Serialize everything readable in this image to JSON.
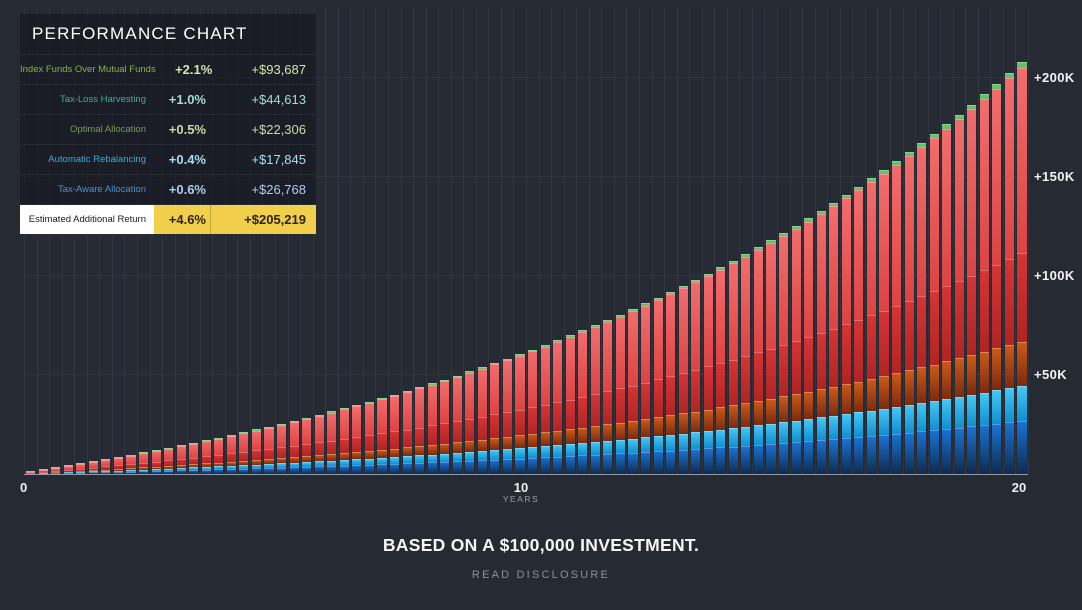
{
  "page": {
    "background": "#262a33",
    "caption": "BASED ON A $100,000 INVESTMENT.",
    "disclosure_link": "READ DISCLOSURE"
  },
  "legend": {
    "title": "PERFORMANCE CHART",
    "rows": [
      {
        "label": "Index Funds Over Mutual Funds",
        "pct": "+2.1%",
        "usd": "+$93,687",
        "label_color": "#86b345",
        "value_color": "#d2e6ab",
        "highlight": false
      },
      {
        "label": "Tax-Loss Harvesting",
        "pct": "+1.0%",
        "usd": "+$44,613",
        "label_color": "#3fae9e",
        "value_color": "#a5dcd2",
        "highlight": false
      },
      {
        "label": "Optimal Allocation",
        "pct": "+0.5%",
        "usd": "+$22,306",
        "label_color": "#7d9a4e",
        "value_color": "#c9dba4",
        "highlight": false
      },
      {
        "label": "Automatic Rebalancing",
        "pct": "+0.4%",
        "usd": "+$17,845",
        "label_color": "#3fa9d8",
        "value_color": "#aadcf2",
        "highlight": false
      },
      {
        "label": "Tax-Aware Allocation",
        "pct": "+0.6%",
        "usd": "+$26,768",
        "label_color": "#4a90d9",
        "value_color": "#aecdee",
        "highlight": false
      },
      {
        "label": "Estimated Additional Return",
        "pct": "+4.6%",
        "usd": "+$205,219",
        "label_color": "#16191f",
        "value_color": "#2a2410",
        "highlight": true,
        "label_bg": "#ffffff",
        "value_bg": "#f2cf4b"
      }
    ]
  },
  "chart_data": {
    "type": "bar",
    "stacked": true,
    "title": "PERFORMANCE CHART",
    "x_axis": {
      "label": "YEARS",
      "min": 0,
      "max": 20,
      "ticks": [
        "0",
        "10",
        "20"
      ],
      "bars": 80
    },
    "y_axis": {
      "ticks": [
        {
          "label": "+50K",
          "value": 50000
        },
        {
          "label": "+100K",
          "value": 100000
        },
        {
          "label": "+150K",
          "value": 150000
        },
        {
          "label": "+200K",
          "value": 200000
        }
      ],
      "max": 232000
    },
    "growth": {
      "annual_rate": 0.093,
      "total_at_20_years": 205219,
      "base_investment": 100000
    },
    "series": [
      {
        "name": "Tax-Aware Allocation",
        "slug": "tax-aware-allocation",
        "value_at_20_years": 26768,
        "color": "#1a73d4",
        "color_dark": "#0e2b4f"
      },
      {
        "name": "Automatic Rebalancing",
        "slug": "automatic-rebalancing",
        "value_at_20_years": 17845,
        "color": "#45c8f5",
        "color_dark": "#0e8fd0"
      },
      {
        "name": "Optimal Allocation",
        "slug": "optimal-allocation",
        "value_at_20_years": 22306,
        "color": "#cd5a17",
        "color_dark": "#7a2a10"
      },
      {
        "name": "Tax-Loss Harvesting",
        "slug": "tax-loss-harvesting",
        "value_at_20_years": 44613,
        "color": "#d63434",
        "color_dark": "#b02424"
      },
      {
        "name": "Index Funds Over Mutual Funds",
        "slug": "index-funds-over-mutual-funds",
        "value_at_20_years": 93687,
        "color": "#f26d6d",
        "color_dark": "#dd4343"
      }
    ],
    "cap": {
      "color": "#62c16c",
      "fraction": 0.013
    },
    "colors": {
      "grid_vertical": "#2e3440",
      "grid_horizontal": "rgba(255,255,255,0.05)",
      "baseline": "#a9afb8"
    }
  }
}
